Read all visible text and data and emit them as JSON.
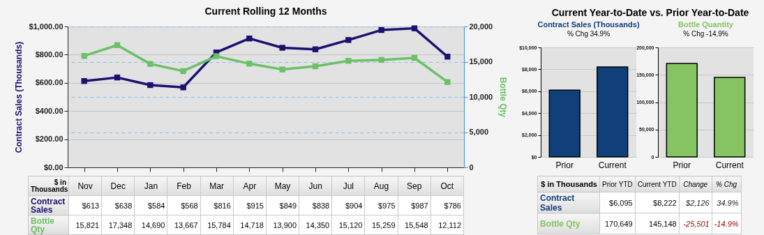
{
  "chart_data": [
    {
      "type": "line",
      "title": "Current Rolling 12 Months",
      "ylabel": "Contract Sales (Thousands)",
      "y2label": "Bottle Qty",
      "categories": [
        "Nov",
        "Dec",
        "Jan",
        "Feb",
        "Mar",
        "Apr",
        "May",
        "Jun",
        "Jul",
        "Aug",
        "Sep",
        "Oct"
      ],
      "series": [
        {
          "name": "Contract Sales",
          "color": "#1c1070",
          "values": [
            613,
            638,
            584,
            568,
            816,
            915,
            849,
            838,
            904,
            975,
            987,
            786
          ],
          "value_labels": [
            "$613",
            "$638",
            "$584",
            "$568",
            "$816",
            "$915",
            "$849",
            "$838",
            "$904",
            "$975",
            "$987",
            "$786"
          ]
        },
        {
          "name": "Bottle Qty",
          "color": "#6cc068",
          "axis": "y2",
          "values": [
            15821,
            17348,
            14690,
            13667,
            15784,
            14718,
            13900,
            14350,
            15120,
            15259,
            15548,
            12112
          ],
          "value_labels": [
            "15,821",
            "17,348",
            "14,690",
            "13,667",
            "15,784",
            "14,718",
            "13,900",
            "14,350",
            "15,120",
            "15,259",
            "15,548",
            "12,112"
          ]
        }
      ],
      "ylim": [
        0,
        1000
      ],
      "yticks": [
        {
          "value": 0,
          "label": "$0.00"
        },
        {
          "value": 200,
          "label": "$200.00"
        },
        {
          "value": 400,
          "label": "$400.00"
        },
        {
          "value": 600,
          "label": "$600.00"
        },
        {
          "value": 800,
          "label": "$800.00"
        },
        {
          "value": 1000,
          "label": "$1,000.00"
        }
      ],
      "y2lim": [
        0,
        20000
      ],
      "y2ticks": [
        0,
        {
          "value": 5000,
          "label": "5,000"
        },
        {
          "value": 10000,
          "label": "10,000"
        },
        {
          "value": 15000,
          "label": "15,000"
        },
        {
          "value": 20000,
          "label": "20,000"
        }
      ],
      "grid": true,
      "marker": "square",
      "data_labels": true,
      "annotations": [
        "$ in Thousands"
      ]
    },
    {
      "type": "bar",
      "title": "Contract Sales (Thousands)",
      "subtitle": "% Chg 34.9%",
      "categories": [
        "Prior",
        "Current"
      ],
      "values": [
        6095,
        8222
      ],
      "value_labels": [
        "$6,095",
        "$8,222"
      ],
      "color": "#113f7a",
      "ylim": [
        0,
        10000
      ],
      "yticks": [
        {
          "value": 0,
          "label": "$0"
        },
        {
          "value": 2000,
          "label": "$2,000"
        },
        {
          "value": 4000,
          "label": "$4,000"
        },
        {
          "value": 6000,
          "label": "$6,000"
        },
        {
          "value": 8000,
          "label": "$8,000"
        },
        {
          "value": 10000,
          "label": "$10,000"
        }
      ],
      "grid": true,
      "annotations": [
        "Current Year-to-Date vs. Prior Year-to-Date"
      ]
    },
    {
      "type": "bar",
      "title": "Bottle Quantity",
      "subtitle": "% Chg -14.9%",
      "categories": [
        "Prior",
        "Current"
      ],
      "values": [
        170649,
        145148
      ],
      "value_labels": [
        "170,649",
        "145,148"
      ],
      "color": "#86c462",
      "ylim": [
        0,
        200000
      ],
      "yticks": [
        0,
        {
          "value": 50000,
          "label": "50,000"
        },
        {
          "value": 100000,
          "label": "100,000"
        },
        {
          "value": 150000,
          "label": "150,000"
        },
        {
          "value": 200000,
          "label": "200,000"
        }
      ],
      "grid": true
    },
    {
      "type": "other",
      "annotations": [
        "$ in Thousands",
        "Prior YTD",
        "Current YTD",
        "Change",
        "% Chg",
        "Contract Sales",
        "$2,126",
        "34.9%",
        "Bottle Qty",
        "-25,501",
        "-14.9%"
      ]
    }
  ]
}
